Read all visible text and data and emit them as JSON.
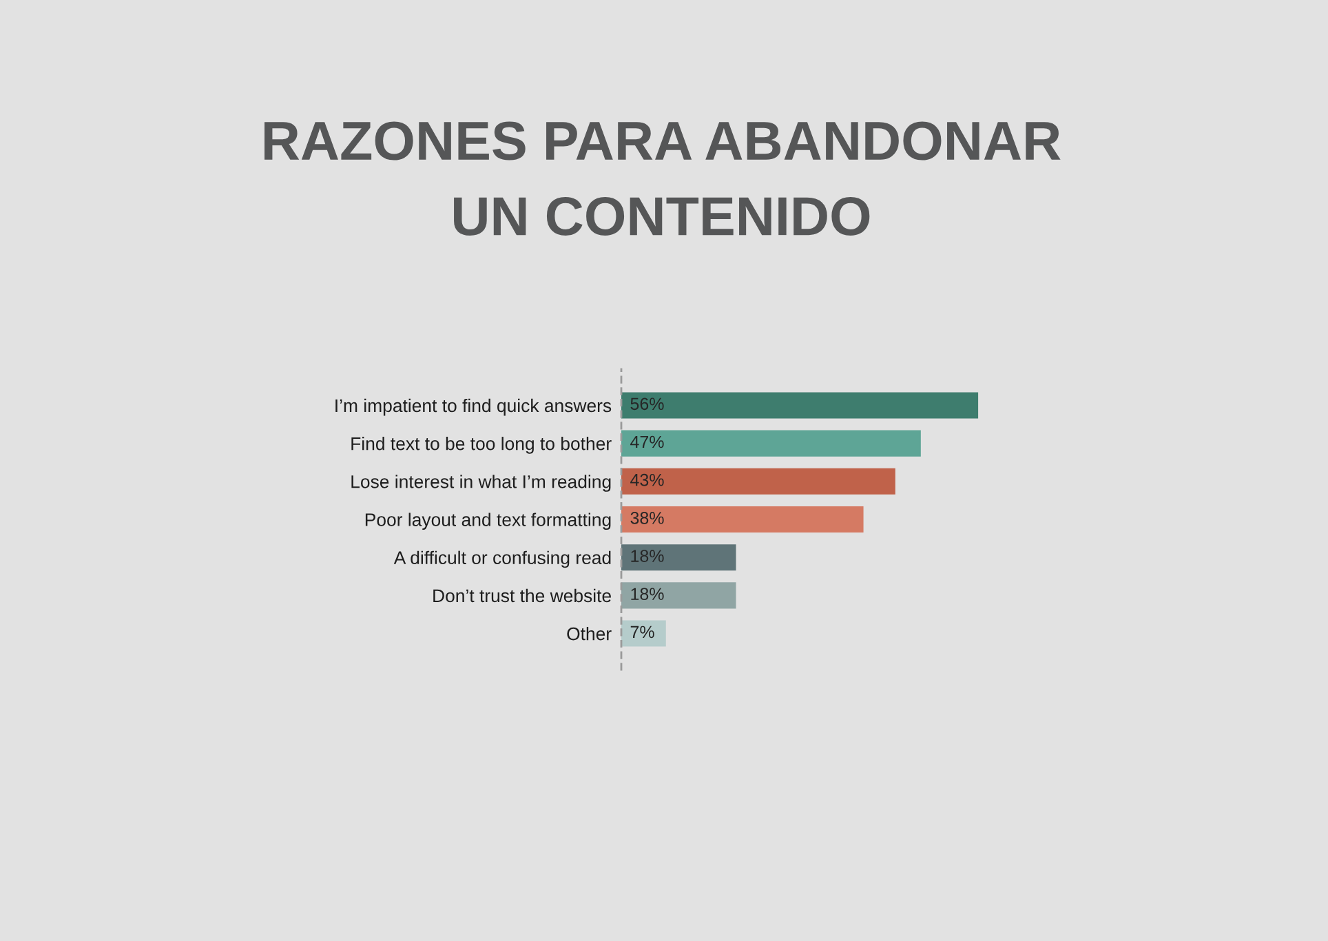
{
  "chart_data": {
    "type": "bar",
    "orientation": "horizontal",
    "title": "RAZONES PARA ABANDONAR\nUN CONTENIDO",
    "categories": [
      "I’m impatient to find quick answers",
      "Find text to be too long to bother",
      "Lose interest in what I’m reading",
      "Poor layout and text formatting",
      "A difficult or confusing read",
      "Don’t trust the website",
      "Other"
    ],
    "values": [
      56,
      47,
      43,
      38,
      18,
      18,
      7
    ],
    "colors": [
      "#3e7d6e",
      "#5ea596",
      "#c0624a",
      "#d57a63",
      "#5f7478",
      "#90a5a4",
      "#b5cccb"
    ],
    "value_labels": [
      "56%",
      "47%",
      "43%",
      "38%",
      "18%",
      "18%",
      "7%"
    ],
    "tick_labels": "y"
  }
}
